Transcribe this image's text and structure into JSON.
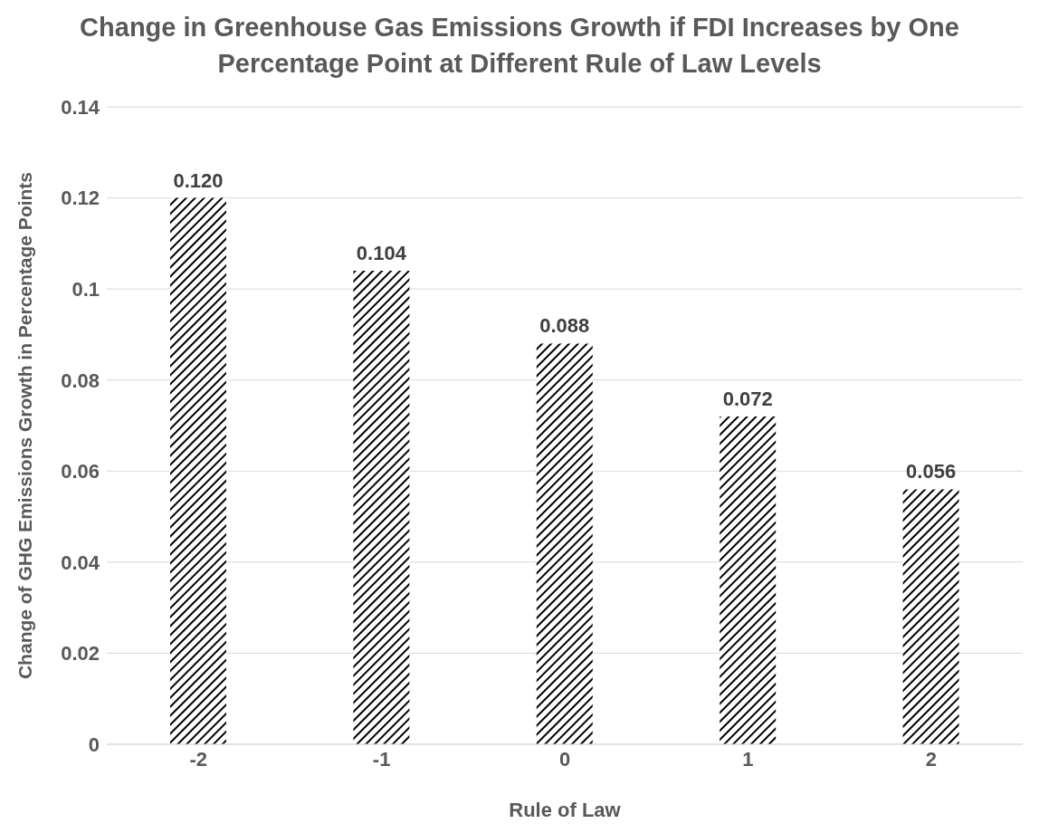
{
  "chart_data": {
    "type": "bar",
    "title": "Change in Greenhouse Gas Emissions Growth if FDI Increases by One Percentage Point at Different Rule of Law Levels",
    "xlabel": "Rule of Law",
    "ylabel": "Change of GHG Emissions Growth in Percentage Points",
    "categories": [
      "-2",
      "-1",
      "0",
      "1",
      "2"
    ],
    "values": [
      0.12,
      0.104,
      0.088,
      0.072,
      0.056
    ],
    "value_labels": [
      "0.120",
      "0.104",
      "0.088",
      "0.072",
      "0.056"
    ],
    "color": "#000000",
    "ylim": [
      0,
      0.14
    ],
    "yticks": [
      0,
      0.02,
      0.04,
      0.06,
      0.08,
      0.1,
      0.12,
      0.14
    ],
    "grid": "y"
  }
}
